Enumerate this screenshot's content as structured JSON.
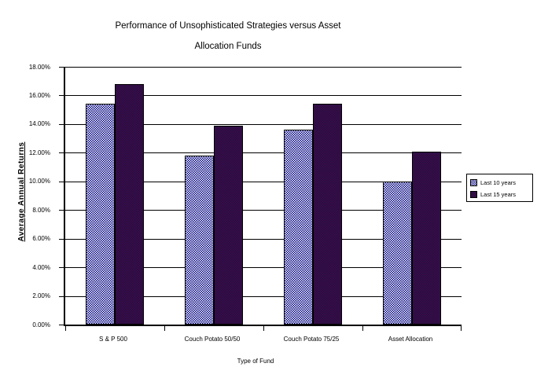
{
  "title": {
    "line1": "Performance of Unsophisticated Strategies versus Asset",
    "line2": "Allocation Funds"
  },
  "chart_data": {
    "type": "bar",
    "title": "Performance of Unsophisticated Strategies versus Asset Allocation Funds",
    "categories": [
      "S & P 500",
      "Couch Potato 50/50",
      "Couch Potato 75/25",
      "Asset Allocation"
    ],
    "series": [
      {
        "name": "Last 10 years",
        "values": [
          15.4,
          11.8,
          13.6,
          10.0
        ],
        "fill": "navy-white-checker"
      },
      {
        "name": "Last 15 years",
        "values": [
          16.8,
          13.9,
          15.4,
          12.1
        ],
        "fill": "dark-plum-checker"
      }
    ],
    "xlabel": "Type of Fund",
    "ylabel": "Average Annual Returns",
    "ylim": [
      0,
      18
    ],
    "ytick_step": 2,
    "ytick_labels": [
      "0.00%",
      "2.00%",
      "4.00%",
      "6.00%",
      "8.00%",
      "10.00%",
      "12.00%",
      "14.00%",
      "16.00%",
      "18.00%"
    ],
    "grid": true,
    "legend_position": "right"
  },
  "colors": {
    "pattern_navy": "#000080",
    "pattern_navy_dark": "#1C104E",
    "pattern_plum": "#460A3C",
    "axis": "#000000",
    "background": "#FFFFFF"
  }
}
